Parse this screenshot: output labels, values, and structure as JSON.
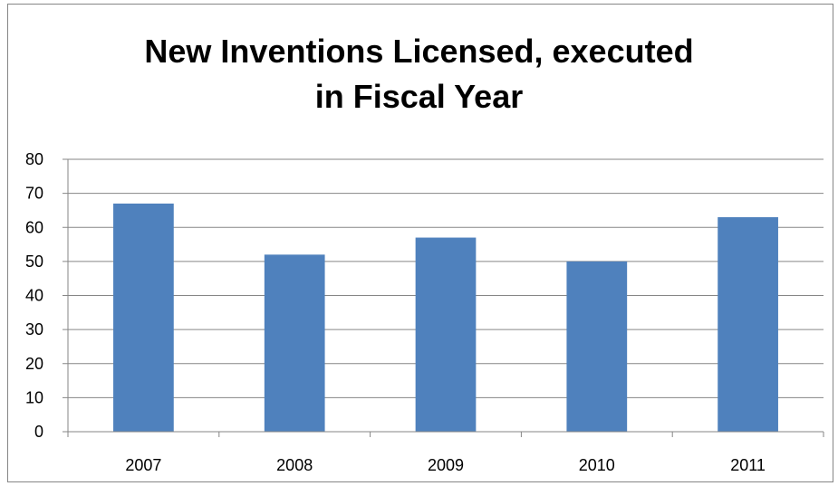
{
  "chart_data": {
    "type": "bar",
    "title_lines": [
      "New Inventions Licensed, executed",
      "in Fiscal Year"
    ],
    "categories": [
      "2007",
      "2008",
      "2009",
      "2010",
      "2011"
    ],
    "values": [
      67,
      52,
      57,
      50,
      63
    ],
    "ylim": [
      0,
      80
    ],
    "yticks": [
      0,
      10,
      20,
      30,
      40,
      50,
      60,
      70,
      80
    ],
    "grid": true,
    "legend": "none",
    "bar_color": "#4f81bd",
    "xlabel": "",
    "ylabel": ""
  }
}
